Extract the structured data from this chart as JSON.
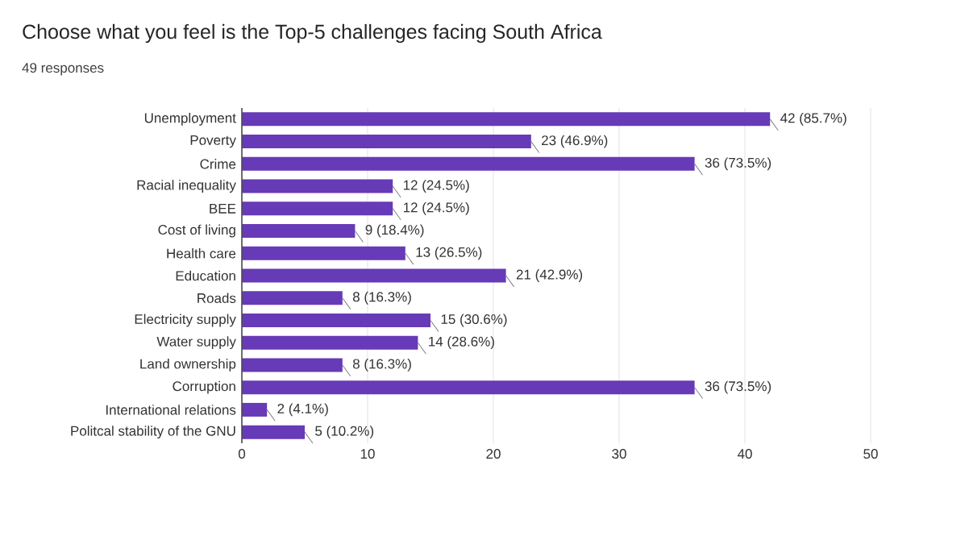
{
  "chart_data": {
    "type": "bar",
    "orientation": "horizontal",
    "title": "Choose what you feel is the Top-5 challenges facing South Africa",
    "subtitle": "49 responses",
    "categories": [
      "Unemployment",
      "Poverty",
      "Crime",
      "Racial inequality",
      "BEE",
      "Cost of living",
      "Health care",
      "Education",
      "Roads",
      "Electricity supply",
      "Water supply",
      "Land ownership",
      "Corruption",
      "International relations",
      "Politcal stability of the GNU"
    ],
    "values": [
      42,
      23,
      36,
      12,
      12,
      9,
      13,
      21,
      8,
      15,
      14,
      8,
      36,
      2,
      5
    ],
    "value_labels": [
      "42 (85.7%)",
      "23 (46.9%)",
      "36 (73.5%)",
      "12 (24.5%)",
      "12 (24.5%)",
      "9 (18.4%)",
      "13 (26.5%)",
      "21 (42.9%)",
      "8 (16.3%)",
      "15 (30.6%)",
      "14 (28.6%)",
      "8 (16.3%)",
      "36 (73.5%)",
      "2 (4.1%)",
      "5 (10.2%)"
    ],
    "color": "#673ab7",
    "xlim": [
      0,
      50
    ],
    "xticks": [
      0,
      10,
      20,
      30,
      40,
      50
    ],
    "grid": "x"
  }
}
